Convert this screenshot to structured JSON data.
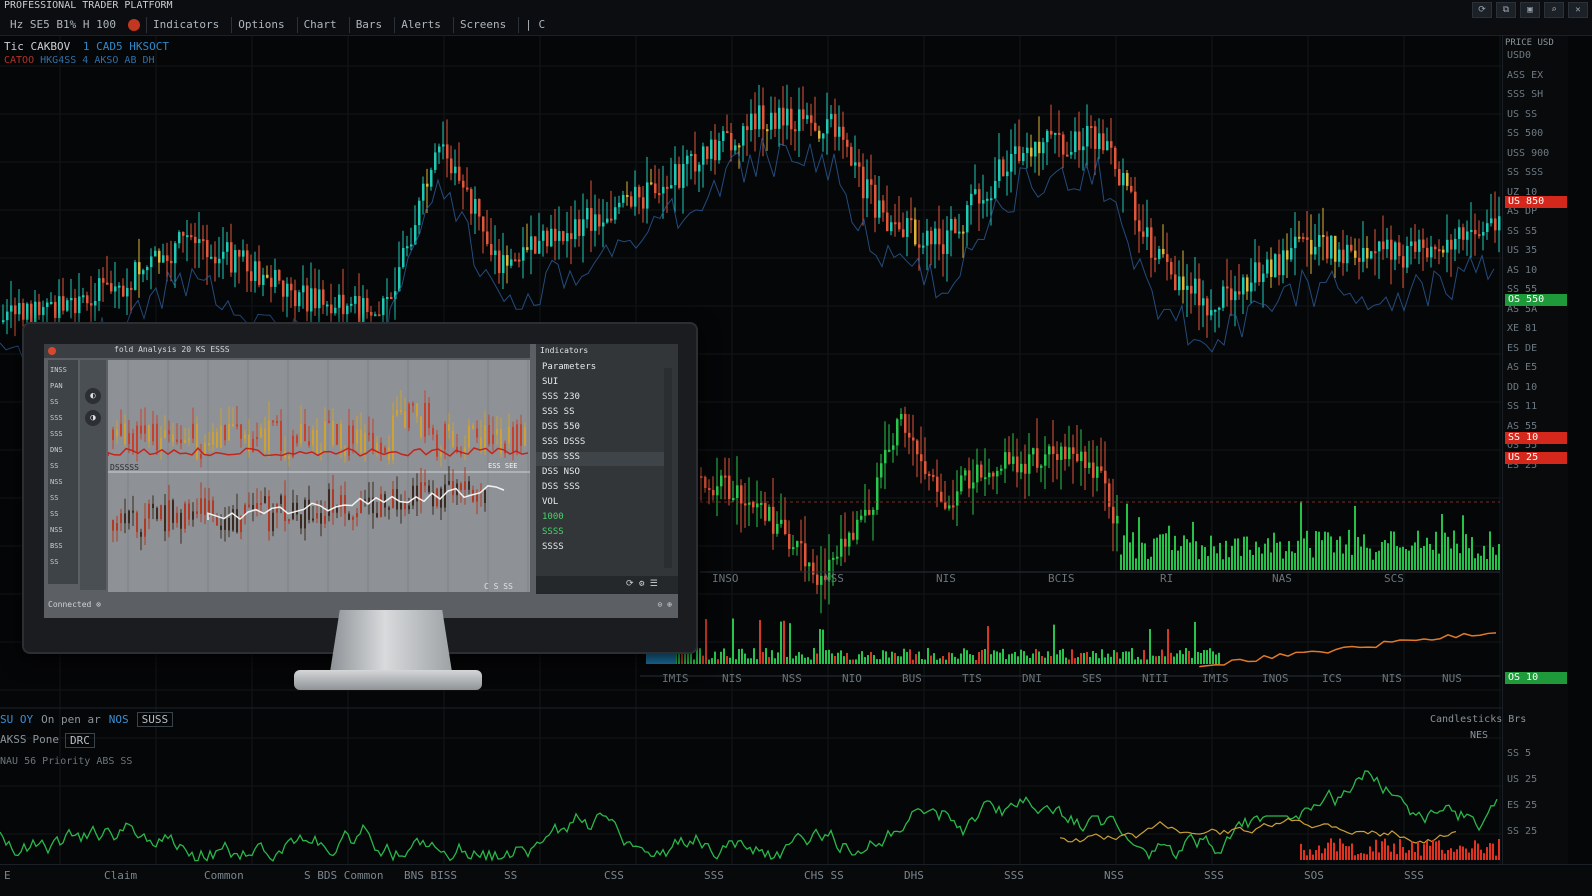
{
  "toolbar": {
    "brand": "PROFESSIONAL TRADER PLATFORM",
    "row": [
      "Hz  SE5 B1% H 100",
      "Indicators",
      "Options",
      "Chart",
      "Bars",
      "Alerts",
      "Screens",
      "| C"
    ],
    "window_controls": [
      "⟳",
      "⧉",
      "▣",
      "⌕",
      "✕"
    ]
  },
  "chart_header": {
    "symbol": "Tic CAKBOV",
    "info": "1 CAD5 HKSOCT",
    "sub": "CATOO",
    "sub2": "HKG4SS 4 AKSO AB DH"
  },
  "price_axis": {
    "head": "PRICE USD",
    "labels": [
      "USD0",
      "ASS EX",
      "SSS SH",
      "US SS",
      "SS 500",
      "USS 900",
      "SS SSS",
      "UZ 10",
      "AS DP",
      "SS S5",
      "US 35",
      "AS 10",
      "SS 55",
      "AS 5A",
      "XE 81",
      "ES DE",
      "AS E5",
      "DD 10",
      "SS 11",
      "AS 55",
      "OS 55",
      "ES 25"
    ],
    "tags": [
      {
        "text": "US 850",
        "color": "#d4281c"
      },
      {
        "text": "OS 550",
        "color": "#1e9a3b"
      },
      {
        "text": "SS 10",
        "color": "#d4281c"
      },
      {
        "text": "US 25",
        "color": "#d4281c"
      },
      {
        "text": "OS 10",
        "color": "#1e9a3b"
      }
    ],
    "bottom_labels": [
      "SS 5",
      "US 25",
      "ES 25",
      "SS 25"
    ]
  },
  "time_axis": {
    "mid": [
      "INSO",
      "NSS",
      "NIS",
      "BCIS",
      "RI",
      "NAS",
      "SCS"
    ],
    "lower": [
      "IMIS",
      "NIS",
      "NSS",
      "NIO",
      "BUS",
      "TIS",
      "DNI",
      "SES",
      "NIII",
      "IMIS",
      "INOS",
      "ICS",
      "NIS",
      "NUS"
    ]
  },
  "bottom_panel": {
    "title_blue": "SU OY",
    "title_grey": "On pen ar",
    "title_blue2": "NOS",
    "box1": "SUSS",
    "line2": [
      "AKSS",
      "Pone",
      "DRC"
    ],
    "line3": "NAU 56 Priority ABS SS",
    "right_label": "Candlesticks  Brs",
    "right_label2": "NES"
  },
  "footer": [
    "E",
    "Claim",
    "Common",
    "S BDS Common",
    "BNS BISS",
    "SS",
    "CSS",
    "SSS",
    "CHS SS",
    "DHS",
    "SSS",
    "NSS",
    "SSS",
    "SOS",
    "SSS"
  ],
  "monitor": {
    "title": "fold Analysis  20 KS ESSS",
    "sidebar": [
      "INSS",
      "PAN",
      "SS",
      "SSS",
      "SSS",
      "DNS",
      "SS",
      "NSS",
      "SS",
      "SS",
      "NSS",
      "BSS",
      "SS"
    ],
    "tool_buttons": [
      "◐",
      "◑"
    ],
    "chart_label": "DSSSSS",
    "chart_label2": "ESS SEE",
    "panel_head": "Indicators",
    "panel_rows": [
      {
        "text": "Parameters",
        "green": false
      },
      {
        "text": "SUI",
        "green": false
      },
      {
        "text": "SSS 230",
        "green": false
      },
      {
        "text": "SSS SS",
        "green": false
      },
      {
        "text": "DSS 550",
        "green": false
      },
      {
        "text": "SSS DSSS",
        "green": false
      },
      {
        "text": "DSS SSS",
        "green": false
      },
      {
        "text": "DSS NSO",
        "green": false
      },
      {
        "text": "DSS SSS",
        "green": false
      },
      {
        "text": "VOL",
        "green": false
      },
      {
        "text": "1000",
        "green": true
      },
      {
        "text": "SSSS",
        "green": true
      },
      {
        "text": "SSSS",
        "green": false
      }
    ],
    "panel_bar_right": "⟳ ⚙ ☰",
    "status_left": "Connected  ⊗",
    "status_right": "⊙ ⊕",
    "corner": "C S SS"
  }
}
